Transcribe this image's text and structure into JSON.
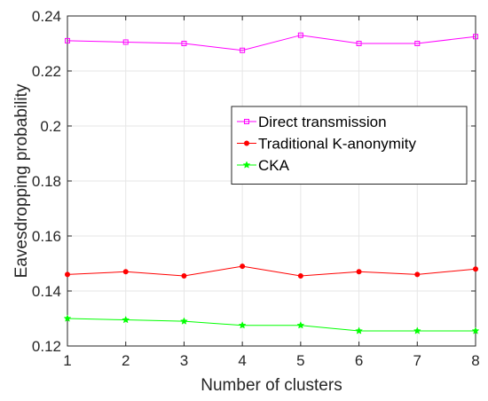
{
  "chart_data": {
    "type": "line",
    "xlabel": "Number of clusters",
    "ylabel": "Eavesdropping probability",
    "xlim": [
      1,
      8
    ],
    "ylim": [
      0.12,
      0.24
    ],
    "x": [
      1,
      2,
      3,
      4,
      5,
      6,
      7,
      8
    ],
    "xticks": [
      "1",
      "2",
      "3",
      "4",
      "5",
      "6",
      "7",
      "8"
    ],
    "yticks": [
      "0.12",
      "0.14",
      "0.16",
      "0.18",
      "0.2",
      "0.22",
      "0.24"
    ],
    "grid": true,
    "legend_position": "center-right",
    "series": [
      {
        "name": "Direct transmission",
        "color": "#ff00ff",
        "marker": "square",
        "values": [
          0.231,
          0.2305,
          0.23,
          0.2275,
          0.233,
          0.23,
          0.23,
          0.2325
        ]
      },
      {
        "name": "Traditional K-anonymity",
        "color": "#ff0000",
        "marker": "dot",
        "values": [
          0.146,
          0.147,
          0.1455,
          0.149,
          0.1455,
          0.147,
          0.146,
          0.148
        ]
      },
      {
        "name": "CKA",
        "color": "#00ff00",
        "marker": "star",
        "values": [
          0.13,
          0.1295,
          0.129,
          0.1275,
          0.1275,
          0.1255,
          0.1255,
          0.1255
        ]
      }
    ]
  }
}
